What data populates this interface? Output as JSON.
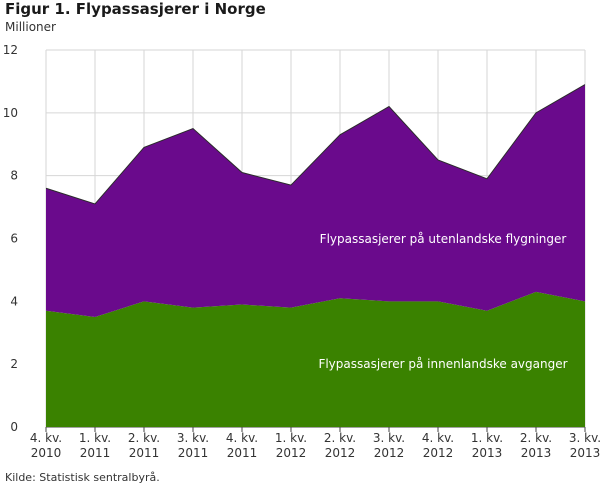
{
  "header": {
    "title": "Figur 1. Flypassasjerer i Norge",
    "unit": "Millioner"
  },
  "footer": {
    "source": "Kilde: Statistisk sentralbyrå."
  },
  "chart_data": {
    "type": "area",
    "stacked": true,
    "categories": [
      [
        "4. kv.",
        "2010"
      ],
      [
        "1. kv.",
        "2011"
      ],
      [
        "2. kv.",
        "2011"
      ],
      [
        "3. kv.",
        "2011"
      ],
      [
        "4. kv.",
        "2011"
      ],
      [
        "1. kv.",
        "2012"
      ],
      [
        "2. kv.",
        "2012"
      ],
      [
        "3. kv.",
        "2012"
      ],
      [
        "4. kv.",
        "2012"
      ],
      [
        "1. kv.",
        "2013"
      ],
      [
        "2. kv.",
        "2013"
      ],
      [
        "3. kv.",
        "2013"
      ]
    ],
    "series": [
      {
        "name": "Flypassasjerer på innenlandske avganger",
        "color": "#3a8200",
        "values": [
          3.7,
          3.5,
          4.0,
          3.8,
          3.9,
          3.8,
          4.1,
          4.0,
          4.0,
          3.7,
          4.3,
          4.0
        ]
      },
      {
        "name": "Flypassasjerer på utenlandske flygninger",
        "color": "#6a0a8c",
        "values": [
          3.9,
          3.6,
          4.9,
          5.7,
          4.2,
          3.9,
          5.2,
          6.2,
          4.5,
          4.2,
          5.7,
          6.9
        ]
      }
    ],
    "ylim": [
      0,
      12
    ],
    "yticks": [
      0,
      2,
      4,
      6,
      8,
      10,
      12
    ],
    "ylabel": "Millioner",
    "grid": true
  }
}
